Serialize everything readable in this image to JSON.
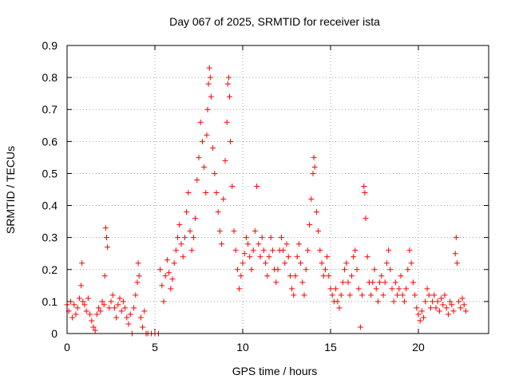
{
  "chart_data": {
    "type": "scatter",
    "title": "Day 067 of 2025, SRMTID for receiver ista",
    "xlabel": "GPS time / hours",
    "ylabel": "SRMTID / TECUs",
    "xlim": [
      0,
      24
    ],
    "ylim": [
      0,
      0.9
    ],
    "xticks": [
      0,
      5,
      10,
      15,
      20
    ],
    "yticks": [
      0,
      0.1,
      0.2,
      0.3,
      0.4,
      0.5,
      0.6,
      0.7,
      0.8,
      0.9
    ],
    "x_tick_labels": [
      "0",
      "5",
      "10",
      "15",
      "20"
    ],
    "y_tick_labels": [
      "0",
      "0.1",
      "0.2",
      "0.3",
      "0.4",
      "0.5",
      "0.6",
      "0.7",
      "0.8",
      "0.9"
    ],
    "grid": true,
    "marker": "+",
    "color": "#ff0000",
    "series": [
      {
        "name": "SRMTID",
        "points": [
          [
            0.0,
            0.09
          ],
          [
            0.1,
            0.07
          ],
          [
            0.2,
            0.1
          ],
          [
            0.3,
            0.05
          ],
          [
            0.4,
            0.09
          ],
          [
            0.5,
            0.06
          ],
          [
            0.6,
            0.08
          ],
          [
            0.7,
            0.11
          ],
          [
            0.8,
            0.15
          ],
          [
            0.85,
            0.22
          ],
          [
            0.9,
            0.1
          ],
          [
            1.0,
            0.09
          ],
          [
            1.1,
            0.07
          ],
          [
            1.2,
            0.11
          ],
          [
            1.3,
            0.06
          ],
          [
            1.4,
            0.04
          ],
          [
            1.5,
            0.02
          ],
          [
            1.6,
            0.01
          ],
          [
            1.7,
            0.06
          ],
          [
            1.8,
            0.08
          ],
          [
            1.9,
            0.07
          ],
          [
            2.0,
            0.1
          ],
          [
            2.1,
            0.09
          ],
          [
            2.15,
            0.18
          ],
          [
            2.2,
            0.33
          ],
          [
            2.25,
            0.3
          ],
          [
            2.3,
            0.27
          ],
          [
            2.4,
            0.08
          ],
          [
            2.5,
            0.1
          ],
          [
            2.6,
            0.12
          ],
          [
            2.7,
            0.08
          ],
          [
            2.8,
            0.05
          ],
          [
            2.9,
            0.09
          ],
          [
            3.0,
            0.11
          ],
          [
            3.1,
            0.07
          ],
          [
            3.2,
            0.1
          ],
          [
            3.3,
            0.08
          ],
          [
            3.4,
            0.05
          ],
          [
            3.5,
            0.03
          ],
          [
            3.6,
            0.06
          ],
          [
            3.7,
            0.0
          ],
          [
            3.8,
            0.08
          ],
          [
            3.9,
            0.12
          ],
          [
            4.0,
            0.16
          ],
          [
            4.05,
            0.22
          ],
          [
            4.1,
            0.18
          ],
          [
            4.2,
            0.05
          ],
          [
            4.3,
            0.02
          ],
          [
            4.4,
            0.07
          ],
          [
            4.5,
            0.0
          ],
          [
            4.6,
            0.0
          ],
          [
            4.8,
            0.0
          ],
          [
            5.0,
            0.0
          ],
          [
            5.2,
            0.0
          ],
          [
            5.3,
            0.2
          ],
          [
            5.4,
            0.15
          ],
          [
            5.5,
            0.1
          ],
          [
            5.6,
            0.18
          ],
          [
            5.7,
            0.23
          ],
          [
            5.8,
            0.19
          ],
          [
            5.9,
            0.14
          ],
          [
            6.0,
            0.17
          ],
          [
            6.1,
            0.22
          ],
          [
            6.2,
            0.26
          ],
          [
            6.3,
            0.3
          ],
          [
            6.4,
            0.34
          ],
          [
            6.5,
            0.28
          ],
          [
            6.6,
            0.24
          ],
          [
            6.7,
            0.3
          ],
          [
            6.8,
            0.38
          ],
          [
            6.9,
            0.44
          ],
          [
            7.0,
            0.32
          ],
          [
            7.1,
            0.26
          ],
          [
            7.2,
            0.3
          ],
          [
            7.3,
            0.36
          ],
          [
            7.4,
            0.48
          ],
          [
            7.5,
            0.55
          ],
          [
            7.6,
            0.66
          ],
          [
            7.7,
            0.6
          ],
          [
            7.8,
            0.52
          ],
          [
            7.9,
            0.44
          ],
          [
            7.95,
            0.62
          ],
          [
            8.0,
            0.7
          ],
          [
            8.05,
            0.78
          ],
          [
            8.1,
            0.83
          ],
          [
            8.15,
            0.8
          ],
          [
            8.2,
            0.74
          ],
          [
            8.3,
            0.58
          ],
          [
            8.4,
            0.5
          ],
          [
            8.5,
            0.44
          ],
          [
            8.6,
            0.38
          ],
          [
            8.7,
            0.32
          ],
          [
            8.8,
            0.28
          ],
          [
            8.9,
            0.42
          ],
          [
            9.0,
            0.54
          ],
          [
            9.1,
            0.66
          ],
          [
            9.15,
            0.78
          ],
          [
            9.2,
            0.8
          ],
          [
            9.25,
            0.74
          ],
          [
            9.3,
            0.6
          ],
          [
            9.4,
            0.46
          ],
          [
            9.5,
            0.32
          ],
          [
            9.6,
            0.26
          ],
          [
            9.7,
            0.2
          ],
          [
            9.8,
            0.14
          ],
          [
            9.9,
            0.18
          ],
          [
            10.0,
            0.22
          ],
          [
            10.1,
            0.25
          ],
          [
            10.2,
            0.3
          ],
          [
            10.3,
            0.28
          ],
          [
            10.4,
            0.24
          ],
          [
            10.5,
            0.2
          ],
          [
            10.6,
            0.26
          ],
          [
            10.7,
            0.32
          ],
          [
            10.8,
            0.46
          ],
          [
            10.9,
            0.28
          ],
          [
            11.0,
            0.24
          ],
          [
            11.1,
            0.3
          ],
          [
            11.2,
            0.26
          ],
          [
            11.3,
            0.22
          ],
          [
            11.4,
            0.18
          ],
          [
            11.5,
            0.24
          ],
          [
            11.6,
            0.3
          ],
          [
            11.7,
            0.26
          ],
          [
            11.8,
            0.2
          ],
          [
            11.9,
            0.16
          ],
          [
            12.0,
            0.2
          ],
          [
            12.1,
            0.26
          ],
          [
            12.2,
            0.3
          ],
          [
            12.3,
            0.26
          ],
          [
            12.4,
            0.22
          ],
          [
            12.5,
            0.28
          ],
          [
            12.6,
            0.24
          ],
          [
            12.7,
            0.18
          ],
          [
            12.8,
            0.14
          ],
          [
            12.9,
            0.12
          ],
          [
            13.0,
            0.18
          ],
          [
            13.1,
            0.24
          ],
          [
            13.2,
            0.28
          ],
          [
            13.3,
            0.22
          ],
          [
            13.4,
            0.16
          ],
          [
            13.5,
            0.12
          ],
          [
            13.6,
            0.2
          ],
          [
            13.7,
            0.26
          ],
          [
            13.8,
            0.34
          ],
          [
            13.9,
            0.42
          ],
          [
            14.0,
            0.5
          ],
          [
            14.05,
            0.55
          ],
          [
            14.1,
            0.52
          ],
          [
            14.2,
            0.38
          ],
          [
            14.3,
            0.32
          ],
          [
            14.4,
            0.26
          ],
          [
            14.5,
            0.22
          ],
          [
            14.6,
            0.18
          ],
          [
            14.7,
            0.2
          ],
          [
            14.8,
            0.24
          ],
          [
            14.9,
            0.18
          ],
          [
            15.0,
            0.14
          ],
          [
            15.1,
            0.12
          ],
          [
            15.2,
            0.1
          ],
          [
            15.3,
            0.14
          ],
          [
            15.4,
            0.1
          ],
          [
            15.5,
            0.08
          ],
          [
            15.6,
            0.12
          ],
          [
            15.7,
            0.16
          ],
          [
            15.8,
            0.2
          ],
          [
            15.9,
            0.22
          ],
          [
            16.0,
            0.16
          ],
          [
            16.1,
            0.12
          ],
          [
            16.2,
            0.18
          ],
          [
            16.3,
            0.24
          ],
          [
            16.4,
            0.26
          ],
          [
            16.5,
            0.2
          ],
          [
            16.6,
            0.14
          ],
          [
            16.7,
            0.02
          ],
          [
            16.8,
            0.12
          ],
          [
            16.9,
            0.46
          ],
          [
            16.95,
            0.44
          ],
          [
            17.0,
            0.36
          ],
          [
            17.1,
            0.24
          ],
          [
            17.2,
            0.16
          ],
          [
            17.3,
            0.12
          ],
          [
            17.4,
            0.16
          ],
          [
            17.5,
            0.2
          ],
          [
            17.6,
            0.14
          ],
          [
            17.7,
            0.1
          ],
          [
            17.8,
            0.16
          ],
          [
            17.9,
            0.18
          ],
          [
            18.0,
            0.12
          ],
          [
            18.1,
            0.16
          ],
          [
            18.2,
            0.22
          ],
          [
            18.3,
            0.26
          ],
          [
            18.4,
            0.2
          ],
          [
            18.5,
            0.14
          ],
          [
            18.6,
            0.1
          ],
          [
            18.7,
            0.16
          ],
          [
            18.8,
            0.12
          ],
          [
            18.9,
            0.14
          ],
          [
            19.0,
            0.18
          ],
          [
            19.1,
            0.12
          ],
          [
            19.2,
            0.1
          ],
          [
            19.3,
            0.14
          ],
          [
            19.4,
            0.2
          ],
          [
            19.5,
            0.26
          ],
          [
            19.6,
            0.22
          ],
          [
            19.7,
            0.16
          ],
          [
            19.8,
            0.12
          ],
          [
            19.9,
            0.08
          ],
          [
            20.0,
            0.06
          ],
          [
            20.1,
            0.04
          ],
          [
            20.2,
            0.07
          ],
          [
            20.3,
            0.05
          ],
          [
            20.4,
            0.1
          ],
          [
            20.5,
            0.14
          ],
          [
            20.6,
            0.12
          ],
          [
            20.7,
            0.08
          ],
          [
            20.8,
            0.1
          ],
          [
            20.9,
            0.12
          ],
          [
            21.0,
            0.08
          ],
          [
            21.1,
            0.1
          ],
          [
            21.2,
            0.07
          ],
          [
            21.3,
            0.11
          ],
          [
            21.4,
            0.09
          ],
          [
            21.5,
            0.12
          ],
          [
            21.6,
            0.08
          ],
          [
            21.7,
            0.06
          ],
          [
            21.8,
            0.1
          ],
          [
            21.9,
            0.09
          ],
          [
            22.0,
            0.07
          ],
          [
            22.1,
            0.25
          ],
          [
            22.15,
            0.3
          ],
          [
            22.2,
            0.22
          ],
          [
            22.3,
            0.1
          ],
          [
            22.4,
            0.08
          ],
          [
            22.5,
            0.11
          ],
          [
            22.6,
            0.09
          ],
          [
            22.7,
            0.07
          ]
        ]
      }
    ]
  }
}
